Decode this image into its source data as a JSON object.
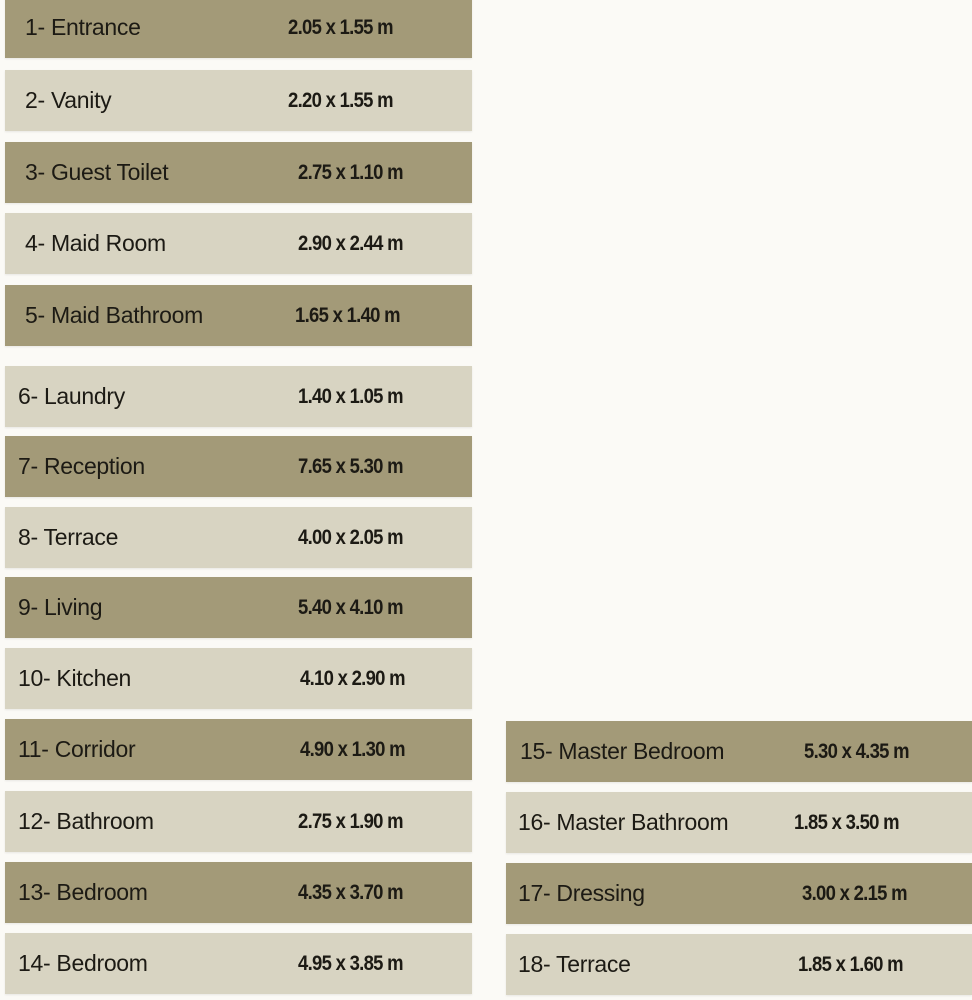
{
  "colors": {
    "dark_row": "#a39a78",
    "light_row": "#d8d4c2"
  },
  "rooms_left": [
    {
      "name": "1- Entrance",
      "size": "2.05 x 1.55 m",
      "shade": "dark"
    },
    {
      "name": "2- Vanity",
      "size": "2.20 x 1.55 m",
      "shade": "light"
    },
    {
      "name": "3- Guest Toilet",
      "size": "2.75 x 1.10 m",
      "shade": "dark"
    },
    {
      "name": "4- Maid Room",
      "size": "2.90 x 2.44 m",
      "shade": "light"
    },
    {
      "name": "5- Maid Bathroom",
      "size": "1.65 x 1.40 m",
      "shade": "dark"
    },
    {
      "name": "6- Laundry",
      "size": "1.40 x 1.05 m",
      "shade": "light"
    },
    {
      "name": "7- Reception",
      "size": "7.65 x 5.30 m",
      "shade": "dark"
    },
    {
      "name": "8- Terrace",
      "size": "4.00 x 2.05 m",
      "shade": "light"
    },
    {
      "name": "9- Living",
      "size": "5.40 x 4.10 m",
      "shade": "dark"
    },
    {
      "name": "10- Kitchen",
      "size": "4.10 x 2.90 m",
      "shade": "light"
    },
    {
      "name": "11- Corridor",
      "size": "4.90 x 1.30 m",
      "shade": "dark"
    },
    {
      "name": "12- Bathroom",
      "size": "2.75 x 1.90 m",
      "shade": "light"
    },
    {
      "name": "13- Bedroom",
      "size": "4.35 x 3.70 m",
      "shade": "dark"
    },
    {
      "name": "14- Bedroom",
      "size": "4.95 x 3.85 m",
      "shade": "light"
    }
  ],
  "rooms_right": [
    {
      "name": "15- Master Bedroom",
      "size": "5.30 x 4.35 m",
      "shade": "dark"
    },
    {
      "name": "16- Master Bathroom",
      "size": "1.85 x 3.50 m",
      "shade": "light"
    },
    {
      "name": "17- Dressing",
      "size": "3.00 x 2.15 m",
      "shade": "dark"
    },
    {
      "name": "18- Terrace",
      "size": "1.85 x 1.60 m",
      "shade": "light"
    }
  ]
}
